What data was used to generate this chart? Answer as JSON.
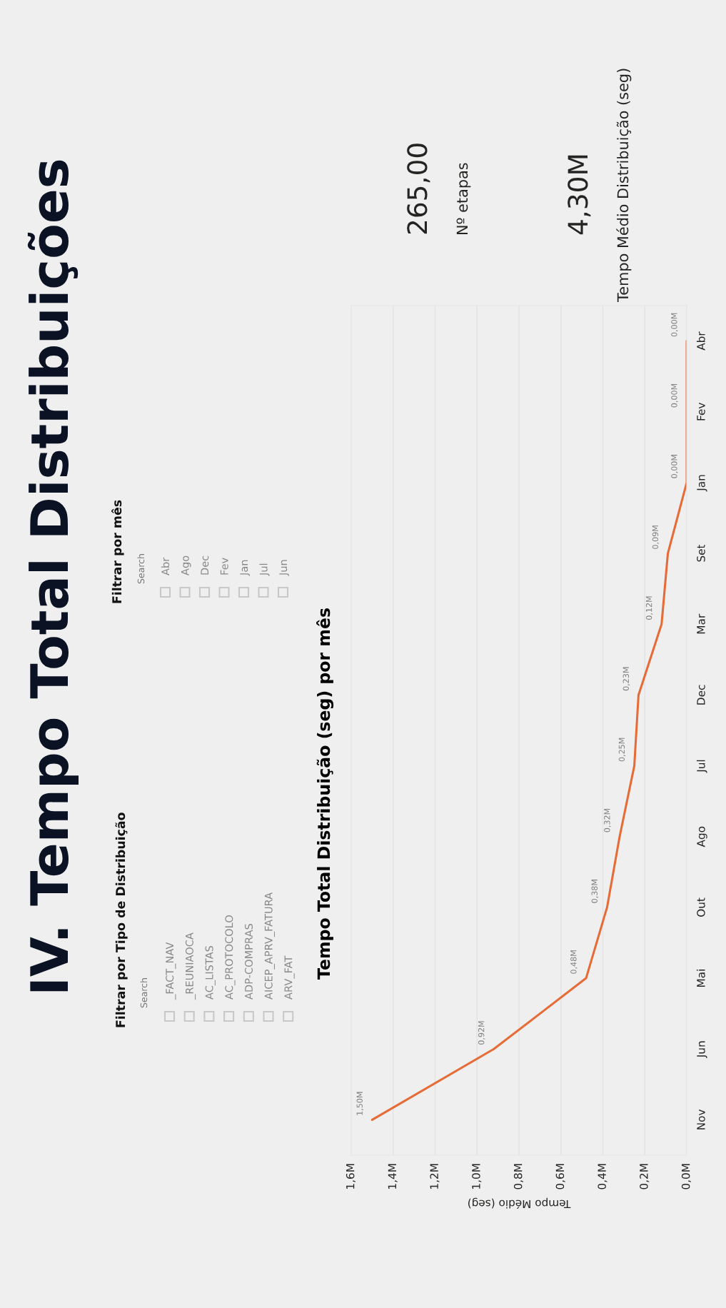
{
  "chart_data": [
    {
      "type": "other",
      "title": "IV. Tempo Total Distribuições"
    },
    {
      "type": "other",
      "title": "Filtrar por Tipo de Distribuição",
      "annotations": [
        "Search",
        "_FACT_NAV",
        "_REUNIAOCA",
        "AC_LISTAS",
        "AC_PROTOCOLO",
        "ADP-COMPRAS",
        "AICEP_APRV_FATURA",
        "ARV_FAT"
      ]
    },
    {
      "type": "other",
      "title": "Filtrar por mês",
      "annotations": [
        "Search",
        "Abr",
        "Ago",
        "Dec",
        "Fev",
        "Jan",
        "Jul",
        "Jun"
      ]
    },
    {
      "type": "other",
      "annotations": [
        "265,00",
        "Nº etapas"
      ]
    },
    {
      "type": "other",
      "annotations": [
        "4,30M",
        "Tempo Médio Distribuição (seg)"
      ]
    },
    {
      "type": "line",
      "title": "Tempo Total Distribuição (seg) por mês",
      "xlabel": "Tempo Médio (seg)",
      "orientation": "horizontal",
      "categories": [
        "Abr",
        "Fev",
        "Jan",
        "Set",
        "Mar",
        "Dec",
        "Jul",
        "Ago",
        "Out",
        "Mai",
        "Jun",
        "Nov"
      ],
      "series": [
        {
          "color": "#e66c37",
          "values": [
            0,
            0,
            0,
            90000,
            120000,
            230000,
            250000,
            320000,
            380000,
            480000,
            920000,
            1500000
          ],
          "value_labels": [
            "0,00M",
            "0,00M",
            "0,00M",
            "0,09M",
            "0,12M",
            "0,23M",
            "0,25M",
            "0,32M",
            "0,38M",
            "0,48M",
            "0,92M",
            "1,50M"
          ]
        }
      ],
      "xlim": [
        1600000,
        0
      ],
      "xticks": [
        {
          "value": 1600000,
          "label": "1,6M"
        },
        {
          "value": 1400000,
          "label": "1,4M"
        },
        {
          "value": 1200000,
          "label": "1,2M"
        },
        {
          "value": 1000000,
          "label": "1,0M"
        },
        {
          "value": 800000,
          "label": "0,8M"
        },
        {
          "value": 600000,
          "label": "0,6M"
        },
        {
          "value": 400000,
          "label": "0,4M"
        },
        {
          "value": 200000,
          "label": "0,2M"
        },
        {
          "value": 0,
          "label": "0,0M"
        }
      ],
      "grid": "x",
      "marker": "none",
      "line_style": "solid"
    }
  ]
}
